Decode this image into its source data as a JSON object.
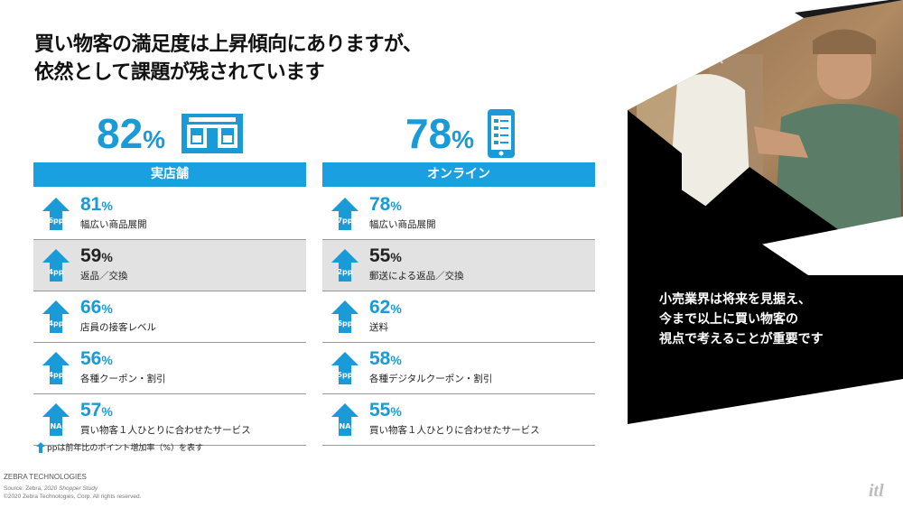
{
  "title": {
    "line1": "買い物客の満足度は上昇傾向にありますが、",
    "line2": "依然として課題が残されています"
  },
  "colors": {
    "accent": "#1a9ad6",
    "bar": "#1aa0e0",
    "shaded_row": "#e2e2e2",
    "dark_panel": "#000000"
  },
  "left": {
    "headline_value": "82",
    "headline_unit": "%",
    "icon": "storefront-icon",
    "category": "実店舗",
    "rows": [
      {
        "value": "81",
        "unit": "%",
        "pp": "6pp",
        "label": "幅広い商品展開",
        "shaded": false
      },
      {
        "value": "59",
        "unit": "%",
        "pp": "4pp",
        "label": "返品／交換",
        "shaded": true
      },
      {
        "value": "66",
        "unit": "%",
        "pp": "4pp",
        "label": "店員の接客レベル",
        "shaded": false
      },
      {
        "value": "56",
        "unit": "%",
        "pp": "4pp",
        "label": "各種クーポン・割引",
        "shaded": false
      },
      {
        "value": "57",
        "unit": "%",
        "pp": "NA",
        "label": "買い物客１人ひとりに合わせたサービス",
        "shaded": false
      }
    ]
  },
  "right": {
    "headline_value": "78",
    "headline_unit": "%",
    "icon": "smartphone-icon",
    "category": "オンライン",
    "rows": [
      {
        "value": "78",
        "unit": "%",
        "pp": "7pp",
        "label": "幅広い商品展開",
        "shaded": false
      },
      {
        "value": "55",
        "unit": "%",
        "pp": "2pp",
        "label": "郵送による返品／交換",
        "shaded": true
      },
      {
        "value": "62",
        "unit": "%",
        "pp": "6pp",
        "label": "送料",
        "shaded": false
      },
      {
        "value": "58",
        "unit": "%",
        "pp": "5pp",
        "label": "各種デジタルクーポン・割引",
        "shaded": false
      },
      {
        "value": "55",
        "unit": "%",
        "pp": "NA",
        "label": "買い物客１人ひとりに合わせたサービス",
        "shaded": false
      }
    ]
  },
  "note": "ppは前年比のポイント増加率（%）を表す",
  "brand": "ZEBRA TECHNOLOGIES",
  "source_prefix": "Source: Zebra, ",
  "source_study": "2020 Shopper Study",
  "copyright": "©2020 Zebra Technologies, Corp. All rights reserved.",
  "panel_text": {
    "line1": "小売業界は将来を見据え、",
    "line2": "今まで以上に買い物客の",
    "line3": "視点で考えることが重要です"
  },
  "logo": "itl"
}
